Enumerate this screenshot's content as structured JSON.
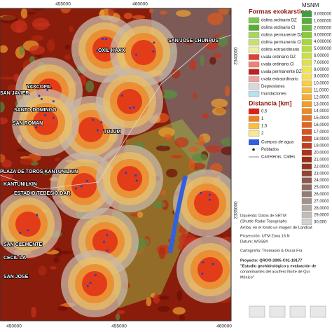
{
  "map": {
    "axis_labels": {
      "top": [
        "455000",
        "460000"
      ],
      "bottom": [
        "450000",
        "455000",
        "460000"
      ],
      "right": [
        "2340000",
        "2335000"
      ]
    },
    "places": [
      "OXIL-KAAX",
      "SAN JOSE CHUNPUS",
      "YAXCOPIL",
      "SAN JAVIER",
      "SANTO DOMINGO",
      "SAN ROMAN",
      "TULUM",
      "PLAZA DE TOROS KANTUNILKIN",
      "KANTUNILKIN",
      "ESTADIO TEBESIO DAR",
      "SAN CLEMENTE",
      "CECIL LA",
      "SAN JOSE"
    ]
  },
  "legend": {
    "title": "Formas exokarsticas",
    "items": [
      {
        "label": "dolina ordinario DZ",
        "color": "#7ec850"
      },
      {
        "label": "dolina ordinario Cl",
        "color": "#58b030"
      },
      {
        "label": "dolina permanente DZ",
        "color": "#a8d860"
      },
      {
        "label": "dolina permanente Cl",
        "color": "#c8e070"
      },
      {
        "label": "dolina extraordinario",
        "color": "#e8f0a0"
      },
      {
        "label": "uvala ordinario DZ",
        "color": "#e04030"
      },
      {
        "label": "uvala ordinario Cl",
        "color": "#f08070"
      },
      {
        "label": "uvala permanente DZ",
        "color": "#c02020"
      },
      {
        "label": "uvala extraordinario",
        "color": "#f0a0a0"
      },
      {
        "label": "Depresiones",
        "color": "#d8d8d8"
      },
      {
        "label": "Inundaciones",
        "color": "#b8e0f0"
      }
    ]
  },
  "distance": {
    "title": "Distancia [km]",
    "items": [
      {
        "label": "0.5",
        "color": "#e02010"
      },
      {
        "label": "1",
        "color": "#f08020"
      },
      {
        "label": "1.5",
        "color": "#f8c040"
      },
      {
        "label": "2",
        "color": "#f8e890"
      }
    ],
    "others": [
      "Cuerpos de agua",
      "Poblados",
      "Carreteras, Calles"
    ]
  },
  "elevation": {
    "title": "MSNM",
    "items": [
      "0,000000",
      "1,000000",
      "2,000000",
      "3,000000",
      "4,000000",
      "5,000000",
      "6,00000",
      "7,00000",
      "8,00000",
      "9,00000",
      "10,0000",
      "11,0000",
      "12,0000",
      "13,0000",
      "14,0000",
      "15,0000",
      "16,0000",
      "17,0000",
      "18,0000",
      "19,0000",
      "20,0000",
      "21,0000",
      "22,0000",
      "23,0000",
      "24,0000",
      "25,0000",
      "26,0000",
      "27,0000",
      "28,0000",
      "29,0000",
      "30,000"
    ]
  },
  "info": [
    "Izquierda: Datos de SRTM",
    "(Shuttle Radar Topography",
    "Arriba: en el fondo un imagen de Landsat",
    "Proyección: UTM Zona 16 N",
    "Datum: WGS84",
    "Cartografía: Thomasini & Oscar Fra",
    "Proyecto: QROO-2005-C01-19177",
    "\"Estudio geohidrológico y evaluación de",
    "conaminantes del acuífero Norte de Qui",
    "México\""
  ]
}
